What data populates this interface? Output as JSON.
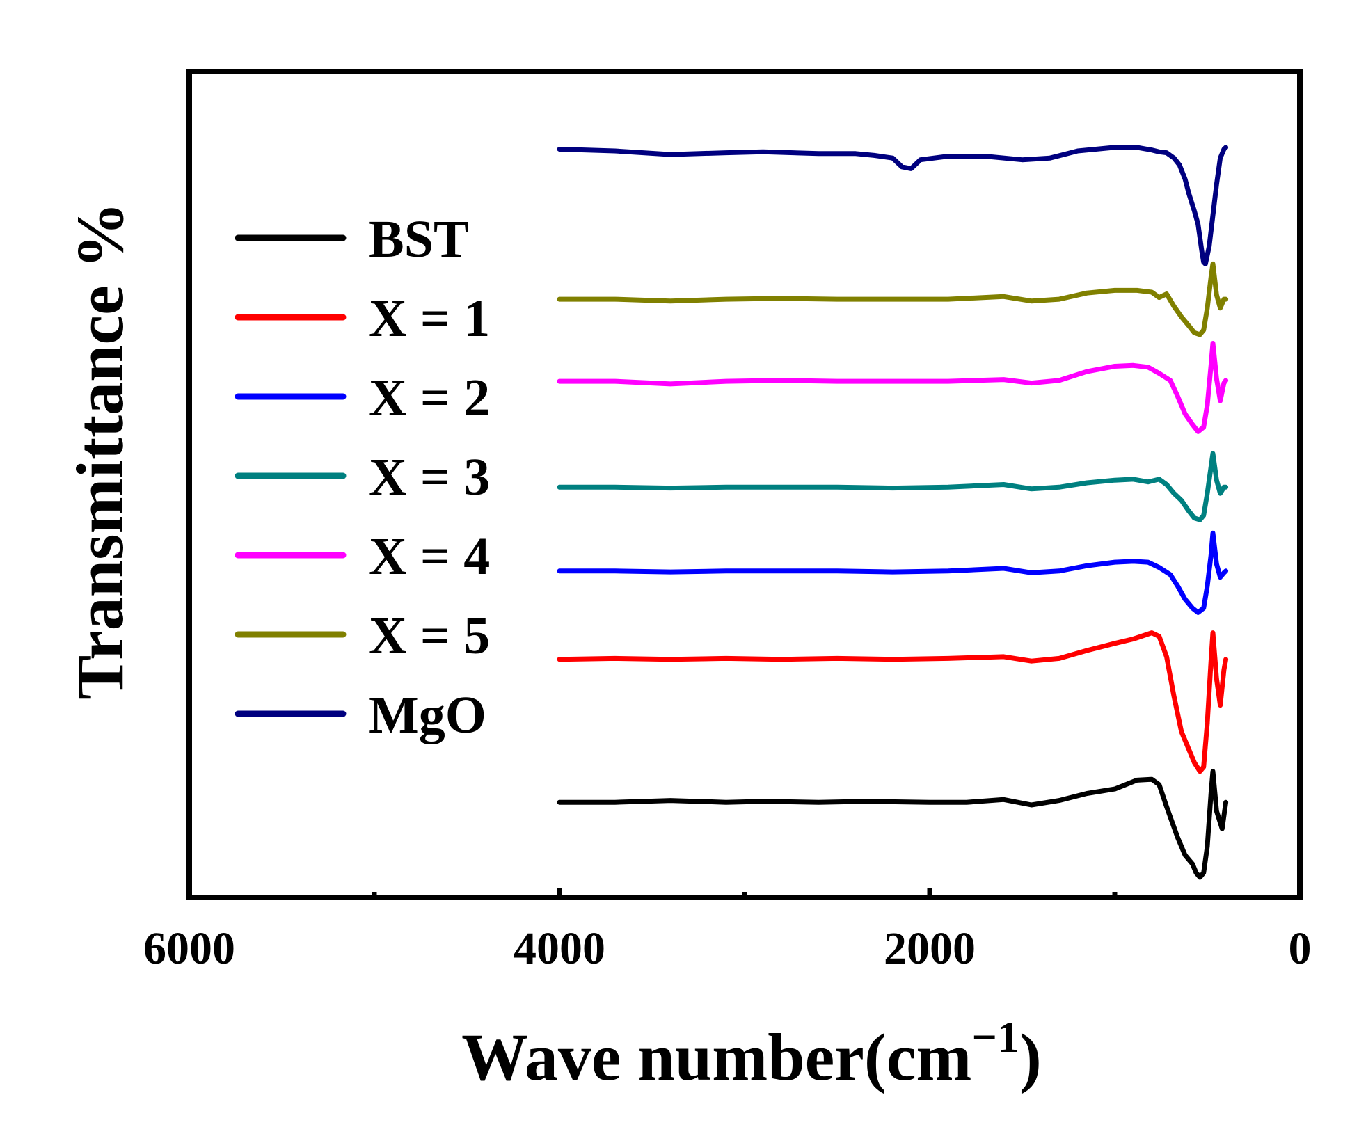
{
  "chart_data": {
    "type": "line",
    "xlabel": "Wave number(cm",
    "xlabel_sup": "−1",
    "xlabel_close": ")",
    "ylabel": "Transmittance %",
    "xlim": [
      6000,
      0
    ],
    "x_reversed": true,
    "xticks": [
      6000,
      4000,
      2000,
      0
    ],
    "xtick_labels": [
      "6000",
      "4000",
      "2000",
      "0"
    ],
    "minor_xticks": [
      5000,
      3000,
      1000
    ],
    "y_ticks_shown": false,
    "ylim": [
      0,
      9.2
    ],
    "grid": false,
    "legend_position": "middle-left",
    "series": [
      {
        "name": "BST",
        "color": "#000000",
        "points": [
          [
            4000,
            1.0
          ],
          [
            3700,
            1.0
          ],
          [
            3400,
            1.02
          ],
          [
            3100,
            1.0
          ],
          [
            2900,
            1.01
          ],
          [
            2600,
            1.0
          ],
          [
            2350,
            1.01
          ],
          [
            2000,
            1.0
          ],
          [
            1800,
            1.0
          ],
          [
            1600,
            1.03
          ],
          [
            1450,
            0.97
          ],
          [
            1300,
            1.02
          ],
          [
            1150,
            1.1
          ],
          [
            1000,
            1.15
          ],
          [
            880,
            1.25
          ],
          [
            800,
            1.26
          ],
          [
            760,
            1.2
          ],
          [
            720,
            0.95
          ],
          [
            660,
            0.6
          ],
          [
            620,
            0.4
          ],
          [
            580,
            0.3
          ],
          [
            560,
            0.2
          ],
          [
            540,
            0.15
          ],
          [
            520,
            0.2
          ],
          [
            500,
            0.5
          ],
          [
            480,
            1.1
          ],
          [
            470,
            1.35
          ],
          [
            450,
            0.9
          ],
          [
            420,
            0.7
          ],
          [
            400,
            1.0
          ]
        ]
      },
      {
        "name": "X = 1",
        "color": "#ff0000",
        "points": [
          [
            4000,
            2.62
          ],
          [
            3700,
            2.63
          ],
          [
            3400,
            2.62
          ],
          [
            3100,
            2.63
          ],
          [
            2800,
            2.62
          ],
          [
            2500,
            2.63
          ],
          [
            2200,
            2.62
          ],
          [
            1900,
            2.63
          ],
          [
            1600,
            2.65
          ],
          [
            1450,
            2.6
          ],
          [
            1300,
            2.63
          ],
          [
            1150,
            2.72
          ],
          [
            1000,
            2.8
          ],
          [
            900,
            2.85
          ],
          [
            800,
            2.92
          ],
          [
            760,
            2.88
          ],
          [
            720,
            2.65
          ],
          [
            680,
            2.2
          ],
          [
            640,
            1.8
          ],
          [
            600,
            1.6
          ],
          [
            570,
            1.45
          ],
          [
            540,
            1.35
          ],
          [
            520,
            1.4
          ],
          [
            500,
            1.9
          ],
          [
            480,
            2.6
          ],
          [
            470,
            2.92
          ],
          [
            450,
            2.4
          ],
          [
            430,
            2.1
          ],
          [
            410,
            2.5
          ],
          [
            400,
            2.62
          ]
        ]
      },
      {
        "name": "X = 2",
        "color": "#0000ff",
        "points": [
          [
            4000,
            3.62
          ],
          [
            3700,
            3.62
          ],
          [
            3400,
            3.61
          ],
          [
            3100,
            3.62
          ],
          [
            2800,
            3.62
          ],
          [
            2500,
            3.62
          ],
          [
            2200,
            3.61
          ],
          [
            1900,
            3.62
          ],
          [
            1600,
            3.65
          ],
          [
            1450,
            3.6
          ],
          [
            1300,
            3.62
          ],
          [
            1150,
            3.68
          ],
          [
            1000,
            3.72
          ],
          [
            900,
            3.73
          ],
          [
            820,
            3.72
          ],
          [
            760,
            3.66
          ],
          [
            700,
            3.58
          ],
          [
            660,
            3.45
          ],
          [
            620,
            3.3
          ],
          [
            580,
            3.2
          ],
          [
            550,
            3.15
          ],
          [
            520,
            3.2
          ],
          [
            500,
            3.45
          ],
          [
            480,
            3.8
          ],
          [
            470,
            4.05
          ],
          [
            450,
            3.7
          ],
          [
            430,
            3.55
          ],
          [
            410,
            3.6
          ],
          [
            400,
            3.62
          ]
        ]
      },
      {
        "name": "X = 3",
        "color": "#008080",
        "points": [
          [
            4000,
            4.57
          ],
          [
            3700,
            4.57
          ],
          [
            3400,
            4.56
          ],
          [
            3100,
            4.57
          ],
          [
            2800,
            4.57
          ],
          [
            2500,
            4.57
          ],
          [
            2200,
            4.56
          ],
          [
            1900,
            4.57
          ],
          [
            1600,
            4.6
          ],
          [
            1450,
            4.55
          ],
          [
            1300,
            4.57
          ],
          [
            1150,
            4.62
          ],
          [
            1000,
            4.65
          ],
          [
            900,
            4.66
          ],
          [
            820,
            4.63
          ],
          [
            760,
            4.66
          ],
          [
            720,
            4.6
          ],
          [
            680,
            4.5
          ],
          [
            640,
            4.42
          ],
          [
            600,
            4.3
          ],
          [
            570,
            4.22
          ],
          [
            540,
            4.2
          ],
          [
            520,
            4.25
          ],
          [
            500,
            4.5
          ],
          [
            480,
            4.8
          ],
          [
            470,
            4.95
          ],
          [
            450,
            4.65
          ],
          [
            430,
            4.5
          ],
          [
            410,
            4.57
          ],
          [
            400,
            4.57
          ]
        ]
      },
      {
        "name": "X = 4",
        "color": "#ff00ff",
        "points": [
          [
            4000,
            5.77
          ],
          [
            3700,
            5.77
          ],
          [
            3400,
            5.74
          ],
          [
            3100,
            5.77
          ],
          [
            2800,
            5.78
          ],
          [
            2500,
            5.77
          ],
          [
            2200,
            5.77
          ],
          [
            1900,
            5.77
          ],
          [
            1600,
            5.79
          ],
          [
            1450,
            5.75
          ],
          [
            1300,
            5.78
          ],
          [
            1150,
            5.88
          ],
          [
            1000,
            5.94
          ],
          [
            900,
            5.95
          ],
          [
            820,
            5.93
          ],
          [
            760,
            5.86
          ],
          [
            700,
            5.78
          ],
          [
            660,
            5.6
          ],
          [
            620,
            5.4
          ],
          [
            580,
            5.28
          ],
          [
            550,
            5.2
          ],
          [
            520,
            5.25
          ],
          [
            500,
            5.5
          ],
          [
            480,
            5.95
          ],
          [
            470,
            6.2
          ],
          [
            450,
            5.8
          ],
          [
            430,
            5.55
          ],
          [
            410,
            5.75
          ],
          [
            400,
            5.78
          ]
        ]
      },
      {
        "name": "X = 5",
        "color": "#808000",
        "points": [
          [
            4000,
            6.7
          ],
          [
            3700,
            6.7
          ],
          [
            3400,
            6.68
          ],
          [
            3100,
            6.7
          ],
          [
            2800,
            6.71
          ],
          [
            2500,
            6.7
          ],
          [
            2200,
            6.7
          ],
          [
            1900,
            6.7
          ],
          [
            1600,
            6.73
          ],
          [
            1450,
            6.68
          ],
          [
            1300,
            6.7
          ],
          [
            1150,
            6.77
          ],
          [
            1000,
            6.8
          ],
          [
            880,
            6.8
          ],
          [
            800,
            6.78
          ],
          [
            760,
            6.72
          ],
          [
            720,
            6.76
          ],
          [
            680,
            6.62
          ],
          [
            640,
            6.5
          ],
          [
            600,
            6.4
          ],
          [
            570,
            6.32
          ],
          [
            540,
            6.3
          ],
          [
            520,
            6.35
          ],
          [
            500,
            6.6
          ],
          [
            480,
            6.95
          ],
          [
            470,
            7.1
          ],
          [
            450,
            6.75
          ],
          [
            430,
            6.6
          ],
          [
            410,
            6.7
          ],
          [
            400,
            6.7
          ]
        ]
      },
      {
        "name": "MgO",
        "color": "#00007f",
        "points": [
          [
            4000,
            8.4
          ],
          [
            3700,
            8.38
          ],
          [
            3400,
            8.34
          ],
          [
            3100,
            8.36
          ],
          [
            2900,
            8.37
          ],
          [
            2600,
            8.35
          ],
          [
            2400,
            8.35
          ],
          [
            2300,
            8.33
          ],
          [
            2200,
            8.3
          ],
          [
            2150,
            8.2
          ],
          [
            2100,
            8.18
          ],
          [
            2050,
            8.28
          ],
          [
            1900,
            8.32
          ],
          [
            1700,
            8.32
          ],
          [
            1500,
            8.28
          ],
          [
            1350,
            8.3
          ],
          [
            1200,
            8.38
          ],
          [
            1000,
            8.42
          ],
          [
            880,
            8.42
          ],
          [
            800,
            8.39
          ],
          [
            760,
            8.37
          ],
          [
            720,
            8.36
          ],
          [
            680,
            8.3
          ],
          [
            650,
            8.22
          ],
          [
            620,
            8.06
          ],
          [
            600,
            7.9
          ],
          [
            570,
            7.7
          ],
          [
            550,
            7.55
          ],
          [
            530,
            7.25
          ],
          [
            520,
            7.12
          ],
          [
            510,
            7.1
          ],
          [
            490,
            7.3
          ],
          [
            470,
            7.65
          ],
          [
            450,
            8.0
          ],
          [
            430,
            8.3
          ],
          [
            410,
            8.4
          ],
          [
            400,
            8.42
          ]
        ]
      }
    ]
  }
}
